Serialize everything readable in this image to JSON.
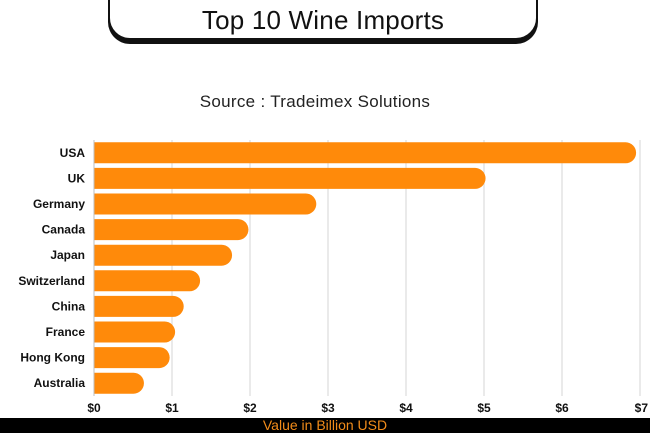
{
  "chart_data": {
    "type": "bar",
    "orientation": "horizontal",
    "title": "Top 10 Wine Imports",
    "subtitle": "Source : Tradeimex Solutions",
    "xlabel": "Value in Billion USD",
    "categories": [
      "USA",
      "UK",
      "Germany",
      "Canada",
      "Japan",
      "Switzerland",
      "China",
      "France",
      "Hong Kong",
      "Australia"
    ],
    "values": [
      6.95,
      5.02,
      2.85,
      1.98,
      1.77,
      1.36,
      1.15,
      1.04,
      0.97,
      0.64
    ],
    "xlim": [
      0,
      7
    ],
    "xticks": [
      "$0",
      "$1",
      "$2",
      "$3",
      "$4",
      "$5",
      "$6",
      "$7"
    ],
    "grid": true,
    "bar_color": "#ff8a0a"
  }
}
